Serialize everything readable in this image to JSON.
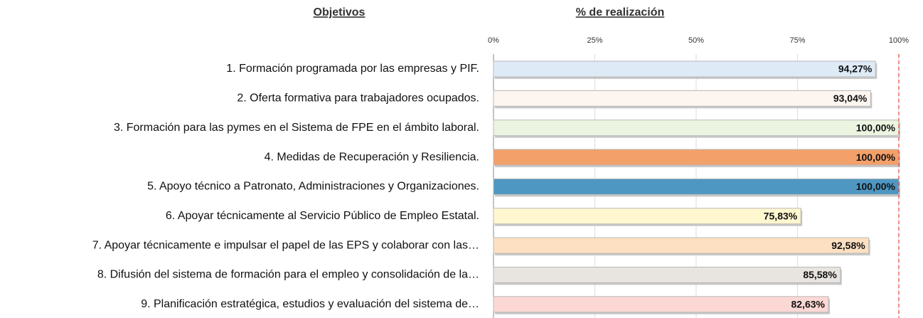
{
  "chart_data": {
    "type": "bar",
    "orientation": "horizontal",
    "category_axis_title": "Objetivos",
    "title": "% de realización",
    "categories": [
      "1. Formación programada por las empresas y PIF.",
      "2. Oferta formativa para trabajadores ocupados.",
      "3. Formación para las pymes en el Sistema de FPE en el ámbito laboral.",
      "4. Medidas de Recuperación y Resiliencia.",
      "5. Apoyo técnico a Patronato, Administraciones y Organizaciones.",
      "6. Apoyar técnicamente al Servicio Público de Empleo Estatal.",
      "7. Apoyar técnicamente e impulsar el papel de las EPS y colaborar con las…",
      "8. Difusión del sistema de formación para el empleo y consolidación de la…",
      "9. Planificación estratégica, estudios y evaluación del sistema de…"
    ],
    "values": [
      94.27,
      93.04,
      100,
      100,
      100,
      75.83,
      92.58,
      85.58,
      82.63
    ],
    "value_labels": [
      "94,27%",
      "93,04%",
      "100,00%",
      "100,00%",
      "100,00%",
      "75,83%",
      "92,58%",
      "85,58%",
      "82,63%"
    ],
    "colors": [
      "#deebf7",
      "#fdf5ef",
      "#ebf4e0",
      "#f4a06a",
      "#4f97c3",
      "#fff7cf",
      "#fde0c2",
      "#e8e4e0",
      "#fcd8d5"
    ],
    "xlim": [
      0,
      100
    ],
    "xticks": [
      {
        "value": 0,
        "label": "0%"
      },
      {
        "value": 25,
        "label": "25%"
      },
      {
        "value": 50,
        "label": "50%"
      },
      {
        "value": 75,
        "label": "75%"
      },
      {
        "value": 100,
        "label": "100%"
      }
    ],
    "target": 100,
    "grid": true
  }
}
